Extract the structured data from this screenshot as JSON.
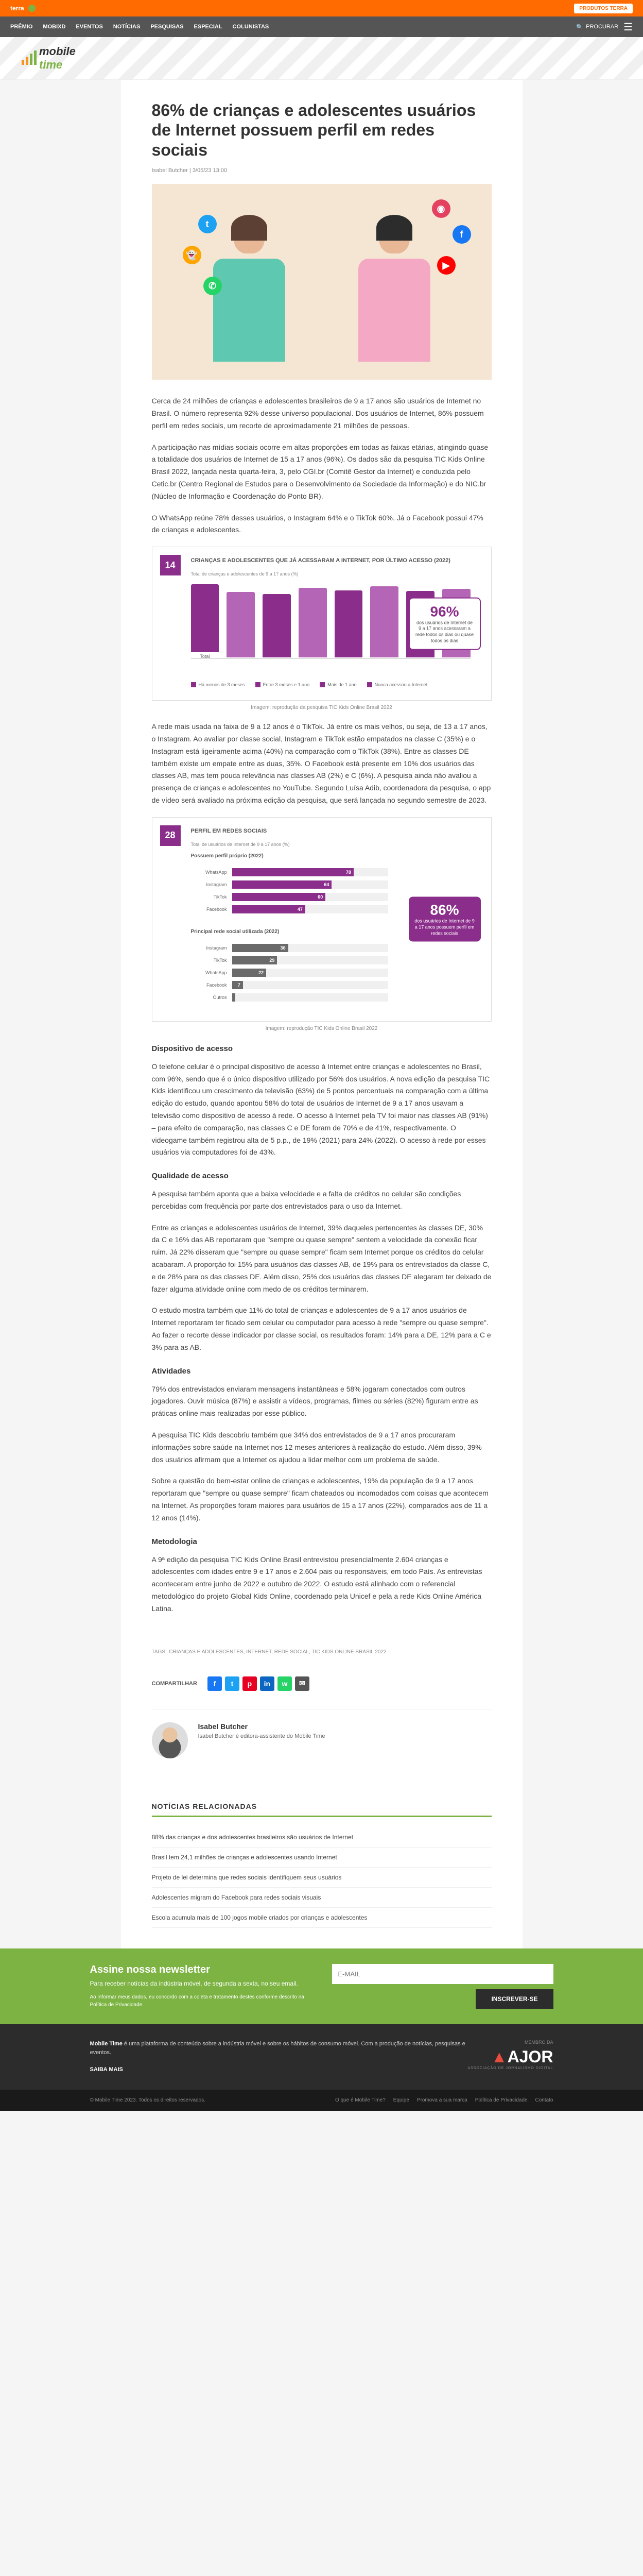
{
  "topBanner": {
    "brand": "terra",
    "cta": "PRODUTOS TERRA"
  },
  "nav": {
    "items": [
      "PRÊMIO",
      "MOBIXD",
      "EVENTOS",
      "NOTÍCIAS",
      "PESQUISAS",
      "ESPECIAL",
      "COLUNISTAS"
    ],
    "search": "PROCURAR"
  },
  "logo": {
    "part1": "mobile",
    "part2": "time"
  },
  "article": {
    "title": "86% de crianças e adolescentes usuários de Internet possuem perfil em redes sociais",
    "author": "Isabel Butcher",
    "date": "3/05/23 13:00",
    "paragraphs": [
      "Cerca de 24 milhões de crianças e adolescentes brasileiros de 9 a 17 anos são usuários de Internet no Brasil. O número representa 92% desse universo populacional. Dos usuários de Internet, 86% possuem perfil em redes sociais, um recorte de aproximadamente 21 milhões de pessoas.",
      "A participação nas mídias sociais ocorre em altas proporções em todas as faixas etárias, atingindo quase a totalidade dos usuários de Internet de 15 a 17 anos (96%). Os dados são da pesquisa TIC Kids Online Brasil 2022, lançada nesta quarta-feira, 3, pelo CGI.br (Comitê Gestor da Internet) e conduzida pelo Cetic.br (Centro Regional de Estudos para o Desenvolvimento da Sociedade da Informação) e do NIC.br (Núcleo de Informação e Coordenação do Ponto BR).",
      "O WhatsApp reúne 78% desses usuários, o Instagram 64% e o TikTok 60%. Já o Facebook possui 47% de crianças e adolescentes.",
      "A rede mais usada na faixa de 9 a 12 anos é o TikTok. Já entre os mais velhos, ou seja, de 13 a 17 anos, o Instagram. Ao avaliar por classe social, Instagram e TikTok estão empatados na classe C (35%) e o Instagram está ligeiramente acima (40%) na comparação com o TikTok (38%). Entre as classes DE também existe um empate entre as duas, 35%. O Facebook está presente em 10% dos usuários das classes AB, mas tem pouca relevância nas classes AB (2%) e C (6%). A pesquisa ainda não avaliou a presença de crianças e adolescentes no YouTube. Segundo Luísa Adib, coordenadora da pesquisa, o app de vídeo será avaliado na próxima edição da pesquisa, que será lançada no segundo semestre de 2023.",
      "O telefone celular é o principal dispositivo de acesso à Internet entre crianças e adolescentes no Brasil, com 96%, sendo que é o único dispositivo utilizado por 56% dos usuários. A nova edição da pesquisa TIC Kids identificou um crescimento da televisão (63%) de 5 pontos percentuais na comparação com a última edição do estudo, quando apontou 58% do total de usuários de Internet de 9 a 17 anos usavam a televisão como dispositivo de acesso à rede. O acesso à Internet pela TV foi maior nas classes AB (91%) – para efeito de comparação, nas classes C e DE foram de 70% e de 41%, respectivamente. O videogame também registrou alta de 5 p.p., de 19% (2021) para 24% (2022). O acesso à rede por esses usuários via computadores foi de 43%.",
      "A pesquisa também aponta que a baixa velocidade e a falta de créditos no celular são condições percebidas com frequência por parte dos entrevistados para o uso da Internet.",
      "Entre as crianças e adolescentes usuários de Internet, 39% daqueles pertencentes às classes DE, 30% da C e 16% das AB reportaram que \"sempre ou quase sempre\" sentem a velocidade da conexão ficar ruim. Já 22% disseram que \"sempre ou quase sempre\" ficam sem Internet porque os créditos do celular acabaram. A proporção foi 15% para usuários das classes AB, de 19% para os entrevistados da classe C, e de 28% para os das classes DE. Além disso, 25% dos usuários das classes DE alegaram ter deixado de fazer alguma atividade online com medo de os créditos terminarem.",
      "O estudo mostra também que 11% do total de crianças e adolescentes de 9 a 17 anos usuários de Internet reportaram ter ficado sem celular ou computador para acesso à rede \"sempre ou quase sempre\". Ao fazer o recorte desse indicador por classe social, os resultados foram: 14% para a DE, 12% para a C e 3% para as AB.",
      "79% dos entrevistados enviaram mensagens instantâneas e 58% jogaram conectados com outros jogadores. Ouvir música (87%) e assistir a vídeos, programas, filmes ou séries (82%) figuram entre as práticas online mais realizadas por esse público.",
      "A pesquisa TIC Kids descobriu também que 34% dos entrevistados de 9 a 17 anos procuraram informações sobre saúde na Internet nos 12 meses anteriores à realização do estudo. Além disso, 39% dos usuários afirmam que a Internet os ajudou a lidar melhor com um problema de saúde.",
      "Sobre a questão do bem-estar online de crianças e adolescentes, 19% da população de 9 a 17 anos reportaram que \"sempre ou quase sempre\" ficam chateados ou incomodados com coisas que acontecem na Internet. As proporções foram maiores para usuários de 15 a 17 anos (22%), comparados aos de 11 a 12 anos (14%).",
      "A 9ª edição da pesquisa TIC Kids Online Brasil entrevistou presencialmente 2.604 crianças e adolescentes com idades entre 9 e 17 anos e 2.604 pais ou responsáveis, em todo País. As entrevistas aconteceram entre junho de 2022 e outubro de 2022. O estudo está alinhado com o referencial metodológico do projeto Global Kids Online, coordenado pela Unicef e pela a rede Kids Online América Latina."
    ],
    "linkText": "TIC Kids Online Brasil 2022",
    "headings": {
      "h1": "Dispositivo de acesso",
      "h2": "Qualidade de acesso",
      "h3": "Atividades",
      "h4": "Metodologia"
    }
  },
  "chart1": {
    "badge": "14",
    "title": "CRIANÇAS E ADOLESCENTES QUE JÁ ACESSARAM A INTERNET, POR ÚLTIMO ACESSO (2022)",
    "subtitle": "Total de crianças e adolescentes de 9 a 17 anos (%)",
    "bars": [
      {
        "h": 88,
        "label": "Total",
        "color": "#8b2e8b"
      },
      {
        "h": 85,
        "label": "",
        "color": "#b565b5"
      },
      {
        "h": 82,
        "label": "",
        "color": "#8b2e8b"
      },
      {
        "h": 90,
        "label": "",
        "color": "#b565b5"
      },
      {
        "h": 87,
        "label": "",
        "color": "#8b2e8b"
      },
      {
        "h": 92,
        "label": "",
        "color": "#b565b5"
      },
      {
        "h": 86,
        "label": "",
        "color": "#8b2e8b"
      },
      {
        "h": 89,
        "label": "",
        "color": "#b565b5"
      }
    ],
    "footerLabels": [
      "Há menos de 3 meses",
      "Entre 3 meses e 1 ano",
      "Mais de 1 ano",
      "Nunca acessou a Internet"
    ],
    "callout": {
      "num": "96%",
      "text": "dos usuários de Internet de 9 a 17 anos acessaram a rede todos os dias ou quase todos os dias"
    },
    "caption": "Imagem: reprodução da pesquisa TIC Kids Online Brasil 2022"
  },
  "chart2": {
    "badge": "28",
    "title": "PERFIL EM REDES SOCIAIS",
    "subtitle": "Total de usuários de Internet de 9 a 17 anos (%)",
    "section1Label": "Possuem perfil próprio (2022)",
    "bars1": [
      {
        "label": "WhatsApp",
        "value": 78,
        "color": "#8b2e8b"
      },
      {
        "label": "Instagram",
        "value": 64,
        "color": "#8b2e8b"
      },
      {
        "label": "TikTok",
        "value": 60,
        "color": "#8b2e8b"
      },
      {
        "label": "Facebook",
        "value": 47,
        "color": "#8b2e8b"
      }
    ],
    "section2Label": "Principal rede social utilizada (2022)",
    "bars2": [
      {
        "label": "Instagram",
        "value": 36,
        "color": "#6a6a6a"
      },
      {
        "label": "TikTok",
        "value": 29,
        "color": "#6a6a6a"
      },
      {
        "label": "WhatsApp",
        "value": 22,
        "color": "#6a6a6a"
      },
      {
        "label": "Facebook",
        "value": 7,
        "color": "#6a6a6a"
      },
      {
        "label": "Outros",
        "value": 2,
        "color": "#6a6a6a"
      }
    ],
    "callout": {
      "num": "86%",
      "text": "dos usuários de Internet de 9 a 17 anos possuem perfil em redes sociais"
    },
    "caption": "Imagem: reprodução TIC Kids Online Brasil 2022"
  },
  "tags": {
    "label": "TAGS:",
    "list": "CRIANÇAS E ADOLESCENTES, INTERNET, REDE SOCIAL, TIC KIDS ONLINE BRASIL 2022"
  },
  "share": {
    "label": "COMPARTILHAR",
    "buttons": [
      {
        "name": "facebook",
        "bg": "#1877f2",
        "glyph": "f"
      },
      {
        "name": "twitter",
        "bg": "#1da1f2",
        "glyph": "t"
      },
      {
        "name": "pinterest",
        "bg": "#e60023",
        "glyph": "p"
      },
      {
        "name": "linkedin",
        "bg": "#0a66c2",
        "glyph": "in"
      },
      {
        "name": "whatsapp",
        "bg": "#25d366",
        "glyph": "w"
      },
      {
        "name": "email",
        "bg": "#555",
        "glyph": "✉"
      }
    ]
  },
  "authorBox": {
    "name": "Isabel Butcher",
    "bio": "Isabel Butcher é editora-assistente do Mobile Time"
  },
  "related": {
    "heading": "NOTÍCIAS RELACIONADAS",
    "items": [
      "88% das crianças e dos adolescentes brasileiros são usuários de Internet",
      "Brasil tem 24,1 milhões de crianças e adolescentes usando Internet",
      "Projeto de lei determina que redes sociais identifiquem seus usuários",
      "Adolescentes migram do Facebook para redes sociais visuais",
      "Escola acumula mais de 100 jogos mobile criados por crianças e adolescentes"
    ]
  },
  "newsletter": {
    "title": "Assine nossa newsletter",
    "subtitle": "Para receber notícias da indústria móvel, de segunda a sexta, no seu email.",
    "disclaimer": "Ao informar meus dados, eu concordo com a coleta e tratamento destes conforme descrito na Política de Privacidade.",
    "disclaimerLink": "Política de Privacidade",
    "placeholder": "E-MAIL",
    "button": "INSCREVER-SE"
  },
  "footerDark": {
    "aboutBold": "Mobile Time",
    "about": " é uma plataforma de conteúdo sobre a indústria móvel e sobre os hábitos de consumo móvel. Com a produção de notícias, pesquisas e eventos.",
    "saiba": "SAIBA MAIS",
    "membroDe": "MEMBRO DA",
    "ajor": "AJOR",
    "ajorSub": "ASSOCIAÇÃO DE JORNALISMO DIGITAL"
  },
  "footerBottom": {
    "copyright": "© Mobile Time 2023. Todos os direitos reservados.",
    "links": [
      "O que é Mobile Time?",
      "Equipe",
      "Promova a sua marca",
      "Política de Privacidade",
      "Contato"
    ]
  }
}
